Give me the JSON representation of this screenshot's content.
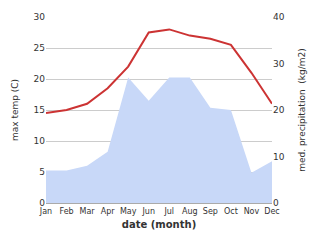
{
  "chart_data": {
    "type": "line",
    "xlabel": "date (month)",
    "ylabel": "max temp (C)",
    "y2label": "med. precipitation  (kg/m2)",
    "categories": [
      "Jan",
      "Feb",
      "Mar",
      "Apr",
      "May",
      "Jun",
      "Jul",
      "Aug",
      "Sep",
      "Oct",
      "Nov",
      "Dec"
    ],
    "series": [
      {
        "type": "area",
        "axis": "y2",
        "color": "#c8d8f8",
        "values": [
          7.0,
          7.0,
          8.0,
          11.0,
          27.0,
          22.0,
          27.0,
          27.0,
          20.5,
          20.0,
          6.5,
          9.0
        ]
      },
      {
        "type": "line",
        "color": "#cc3333",
        "values": [
          14.5,
          15.0,
          16.0,
          18.5,
          22.0,
          27.5,
          28.0,
          27.0,
          26.5,
          25.5,
          21.0,
          16.0
        ]
      }
    ],
    "ylim": [
      0,
      30
    ],
    "yticks": [
      0,
      5,
      10,
      15,
      20,
      25,
      30
    ],
    "y2lim": [
      0,
      40
    ],
    "y2ticks": [
      0,
      10,
      20,
      30,
      40
    ],
    "grid": true
  }
}
